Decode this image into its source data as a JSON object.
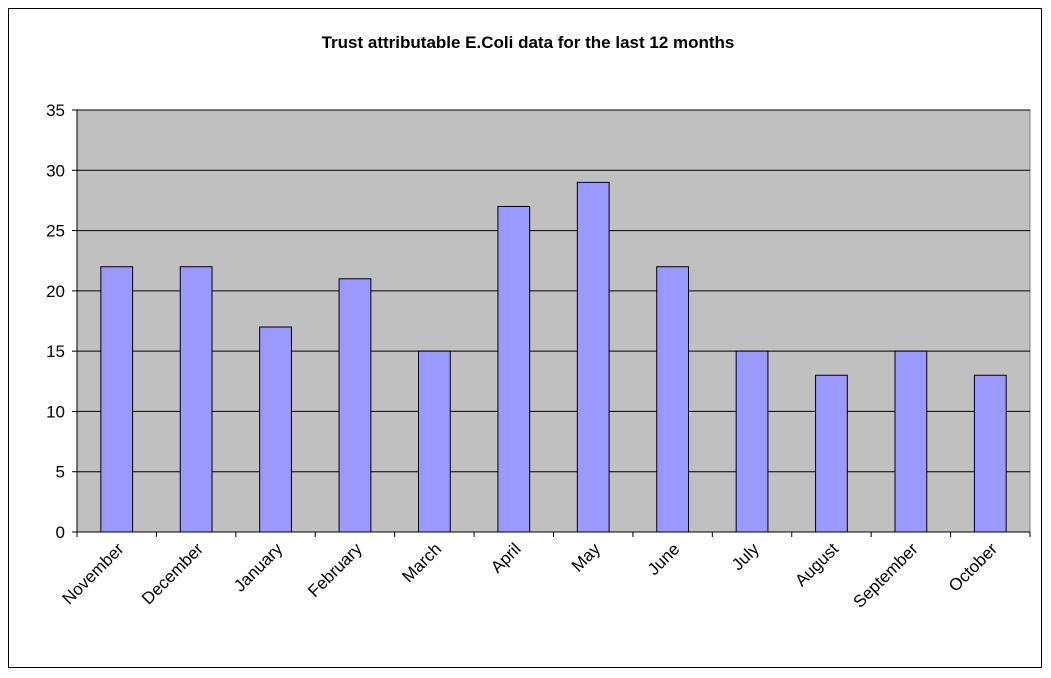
{
  "chart_data": {
    "type": "bar",
    "title": "Trust attributable E.Coli data for the last 12 months",
    "categories": [
      "November",
      "December",
      "January",
      "February",
      "March",
      "April",
      "May",
      "June",
      "July",
      "August",
      "September",
      "October"
    ],
    "values": [
      22,
      22,
      17,
      21,
      15,
      27,
      29,
      22,
      15,
      13,
      15,
      13
    ],
    "color": "#9999ff",
    "ylim": [
      0,
      35
    ],
    "yticks": [
      0,
      5,
      10,
      15,
      20,
      25,
      30,
      35
    ],
    "grid": true
  }
}
